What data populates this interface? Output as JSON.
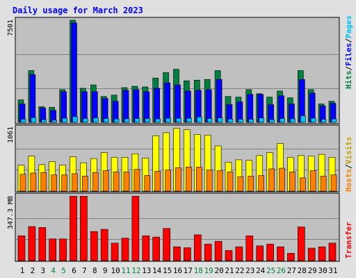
{
  "chart_data": [
    {
      "type": "bar",
      "title": "Daily usage for March 2023",
      "panel": "hits-files-pages",
      "categories": [
        "1",
        "2",
        "3",
        "4",
        "5",
        "6",
        "7",
        "8",
        "9",
        "10",
        "11",
        "12",
        "13",
        "14",
        "15",
        "16",
        "17",
        "18",
        "19",
        "20",
        "21",
        "22",
        "23",
        "24",
        "25",
        "26",
        "27",
        "28",
        "29",
        "30",
        "31"
      ],
      "y_tick_label": "7501",
      "y_tick_value": 7501,
      "ylim": [
        0,
        7501
      ],
      "side_label": {
        "hits": "Hits",
        "sep1": "/",
        "files": "Files",
        "sep2": "/",
        "pages": "Pages"
      },
      "series": [
        {
          "name": "Hits",
          "color": "#008040",
          "values": [
            1650,
            3800,
            1150,
            1100,
            2400,
            7500,
            2500,
            2750,
            1900,
            2000,
            2550,
            2650,
            2600,
            3250,
            3650,
            3900,
            3050,
            3100,
            3150,
            3800,
            1900,
            1850,
            2400,
            2100,
            1850,
            2300,
            1800,
            3800,
            2400,
            1350,
            1550
          ]
        },
        {
          "name": "Files",
          "color": "#0000ff",
          "values": [
            1350,
            3500,
            1050,
            880,
            2250,
            7300,
            2250,
            2250,
            1750,
            1550,
            2350,
            2400,
            2250,
            2500,
            2900,
            2750,
            2300,
            2350,
            2400,
            3150,
            1300,
            1500,
            2050,
            2050,
            1300,
            1950,
            1350,
            3150,
            2150,
            1200,
            1400
          ]
        },
        {
          "name": "Pages",
          "color": "#00c0ff",
          "values": [
            230,
            350,
            200,
            160,
            300,
            420,
            280,
            330,
            280,
            250,
            260,
            280,
            280,
            250,
            300,
            300,
            300,
            400,
            280,
            320,
            240,
            230,
            230,
            320,
            200,
            280,
            260,
            480,
            300,
            210,
            250
          ]
        }
      ]
    },
    {
      "type": "bar",
      "panel": "visits-sites",
      "categories": [
        "1",
        "2",
        "3",
        "4",
        "5",
        "6",
        "7",
        "8",
        "9",
        "10",
        "11",
        "12",
        "13",
        "14",
        "15",
        "16",
        "17",
        "18",
        "19",
        "20",
        "21",
        "22",
        "23",
        "24",
        "25",
        "26",
        "27",
        "28",
        "29",
        "30",
        "31"
      ],
      "y_tick_label": "1061",
      "y_tick_value": 1061,
      "ylim": [
        0,
        1061
      ],
      "side_label": {
        "sites": "Hosts",
        "sep": "/",
        "visits": "Visits"
      },
      "series": [
        {
          "name": "Visits",
          "color": "#ffff00",
          "values": [
            430,
            580,
            440,
            490,
            430,
            570,
            470,
            540,
            640,
            560,
            560,
            620,
            550,
            920,
            970,
            1040,
            1020,
            940,
            930,
            750,
            480,
            520,
            510,
            590,
            640,
            790,
            560,
            590,
            580,
            610,
            560
          ]
        },
        {
          "name": "Hosts",
          "color": "#ff8000",
          "values": [
            280,
            300,
            310,
            270,
            270,
            290,
            250,
            310,
            340,
            320,
            320,
            360,
            260,
            330,
            350,
            390,
            400,
            400,
            350,
            340,
            320,
            240,
            250,
            260,
            370,
            380,
            320,
            220,
            340,
            250,
            270
          ]
        }
      ]
    },
    {
      "type": "bar",
      "panel": "transfer",
      "categories": [
        "1",
        "2",
        "3",
        "4",
        "5",
        "6",
        "7",
        "8",
        "9",
        "10",
        "11",
        "12",
        "13",
        "14",
        "15",
        "16",
        "17",
        "18",
        "19",
        "20",
        "21",
        "22",
        "23",
        "24",
        "25",
        "26",
        "27",
        "28",
        "29",
        "30",
        "31"
      ],
      "y_tick_label": "347.3 MB",
      "y_tick_value": 347.3,
      "ylim": [
        0,
        347.3
      ],
      "side_label": {
        "transfer": "Transfer"
      },
      "series": [
        {
          "name": "Transfer",
          "color": "#ff0000",
          "values": [
            135,
            185,
            180,
            118,
            118,
            350,
            350,
            158,
            170,
            95,
            122,
            350,
            135,
            128,
            175,
            75,
            70,
            140,
            90,
            105,
            55,
            75,
            135,
            80,
            90,
            75,
            40,
            183,
            68,
            75,
            95
          ]
        }
      ]
    }
  ],
  "weekend_days": [
    4,
    5,
    11,
    12,
    18,
    19,
    25,
    26
  ],
  "colors": {
    "weekday": "#000000",
    "weekend": "#008040",
    "title": "#0000ff",
    "panel_bg": "#c0c0c0",
    "page_bg": "#e0e0e0"
  }
}
